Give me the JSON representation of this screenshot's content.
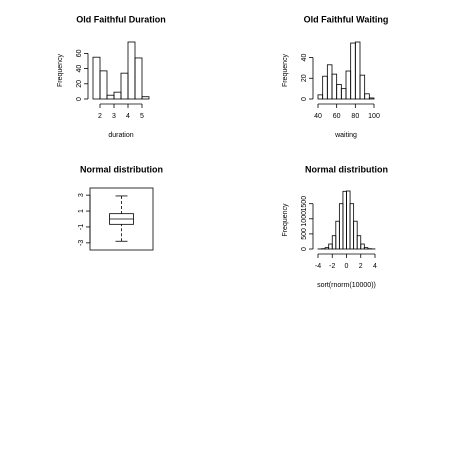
{
  "chart_data": [
    {
      "type": "histogram",
      "title": "Old Faithful Duration",
      "xlabel": "duration",
      "ylabel": "Frequency",
      "bins": [
        1.5,
        2,
        2.5,
        3,
        3.5,
        4,
        4.5,
        5,
        5.5
      ],
      "values": [
        55,
        37,
        5,
        9,
        34,
        75,
        54,
        3
      ],
      "xlim": [
        1.5,
        5.5
      ],
      "ylim": [
        0,
        75
      ],
      "xticks": [
        2,
        3,
        4,
        5
      ],
      "yticks": [
        0,
        20,
        40,
        60
      ]
    },
    {
      "type": "histogram",
      "title": "Old Faithful Waiting",
      "xlabel": "waiting",
      "ylabel": "Frequency",
      "bins": [
        40,
        45,
        50,
        55,
        60,
        65,
        70,
        75,
        80,
        85,
        90,
        95,
        100
      ],
      "values": [
        4,
        22,
        33,
        24,
        14,
        10,
        27,
        54,
        55,
        23,
        5,
        1
      ],
      "xlim": [
        40,
        100
      ],
      "ylim": [
        0,
        55
      ],
      "xticks": [
        40,
        60,
        80,
        100
      ],
      "yticks": [
        0,
        20,
        40
      ]
    },
    {
      "type": "box",
      "title": "Normal distribution",
      "box": {
        "min": -2.8,
        "q1": -0.67,
        "median": 0,
        "q3": 0.67,
        "max": 2.9
      },
      "ylim": [
        -3.9,
        3.9
      ],
      "yticks": [
        -3,
        -1,
        1,
        3
      ]
    },
    {
      "type": "histogram",
      "title": "Normal distribution",
      "xlabel": "sort(rnorm(10000))",
      "ylabel": "Frequency",
      "bins": [
        -4,
        -3.5,
        -3,
        -2.5,
        -2,
        -1.5,
        -1,
        -0.5,
        0,
        0.5,
        1,
        1.5,
        2,
        2.5,
        3,
        3.5,
        4
      ],
      "values": [
        2,
        10,
        45,
        165,
        440,
        920,
        1500,
        1910,
        1920,
        1500,
        920,
        440,
        165,
        45,
        10,
        3
      ],
      "xlim": [
        -4,
        4
      ],
      "ylim": [
        0,
        1920
      ],
      "xticks": [
        -4,
        -2,
        0,
        2,
        4
      ],
      "yticks": [
        0,
        500,
        1000,
        1500
      ]
    }
  ]
}
